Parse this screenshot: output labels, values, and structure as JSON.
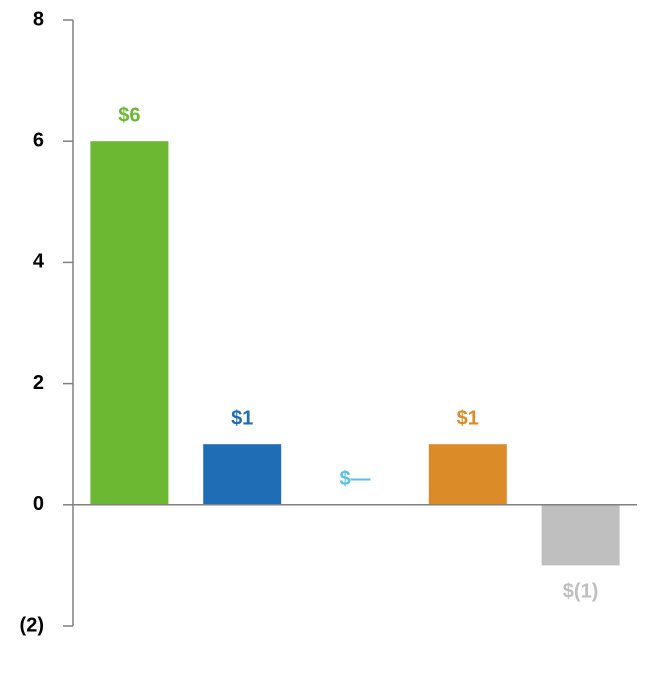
{
  "chart_data": {
    "type": "bar",
    "values": [
      6,
      1,
      0,
      1,
      -1
    ],
    "value_labels": [
      "$6",
      "$1",
      "$—",
      "$1",
      "$(1)"
    ],
    "colors": [
      "#6cb833",
      "#1f6db5",
      "#5bbfe8",
      "#db8c28",
      "#bfbfbf"
    ],
    "ylim": [
      -2,
      8
    ],
    "yticks": [
      {
        "value": -2,
        "label": "(2)"
      },
      0,
      2,
      4,
      6,
      8
    ]
  }
}
